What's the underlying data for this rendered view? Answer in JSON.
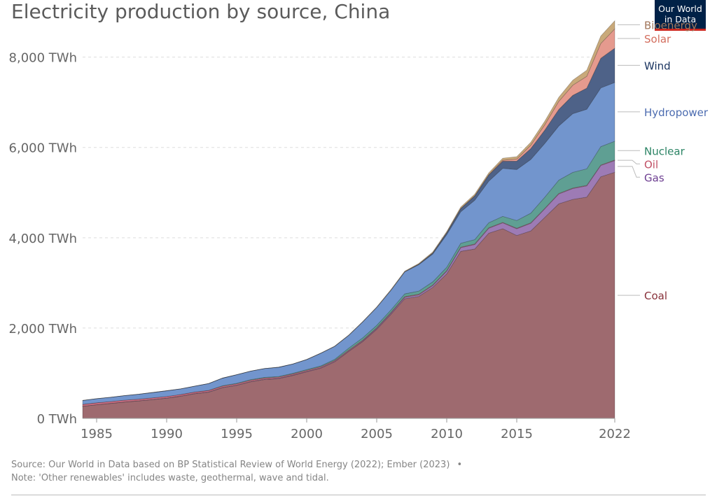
{
  "header": {
    "title": "Electricity production by source, China",
    "logo_line1": "Our World",
    "logo_line2": "in Data"
  },
  "footer": {
    "source": "Source: Our World in Data based on BP Statistical Review of World Energy (2022); Ember (2023)",
    "bullet": "•",
    "note": "Note: 'Other renewables' includes waste, geothermal, wave and tidal."
  },
  "chart_data": {
    "type": "area",
    "stacked": true,
    "title": "Electricity production by source, China",
    "unit": "TWh",
    "x": [
      1984,
      1985,
      1986,
      1987,
      1988,
      1989,
      1990,
      1991,
      1992,
      1993,
      1994,
      1995,
      1996,
      1997,
      1998,
      1999,
      2000,
      2001,
      2002,
      2003,
      2004,
      2005,
      2006,
      2007,
      2008,
      2009,
      2010,
      2011,
      2012,
      2013,
      2014,
      2015,
      2016,
      2017,
      2018,
      2019,
      2020,
      2021,
      2022
    ],
    "x_tick_labels": [
      "1985",
      "1990",
      "1995",
      "2000",
      "2005",
      "2010",
      "2015",
      "2022"
    ],
    "x_tick_values": [
      1985,
      1990,
      1995,
      2000,
      2005,
      2010,
      2015,
      2022
    ],
    "ylim": [
      0,
      8800
    ],
    "y_ticks": [
      0,
      2000,
      4000,
      6000,
      8000
    ],
    "y_tick_labels": [
      "0 TWh",
      "2,000 TWh",
      "4,000 TWh",
      "6,000 TWh",
      "8,000 TWh"
    ],
    "grid": "horizontal dashed",
    "legend": "right, labels at series ends",
    "series": [
      {
        "name": "Coal",
        "color": "#9e6a6f",
        "label_color": "#883039",
        "values": [
          265,
          300,
          330,
          360,
          385,
          415,
          445,
          490,
          545,
          580,
          680,
          730,
          810,
          860,
          880,
          950,
          1030,
          1110,
          1250,
          1480,
          1700,
          1970,
          2300,
          2650,
          2700,
          2900,
          3200,
          3700,
          3750,
          4100,
          4200,
          4050,
          4150,
          4450,
          4750,
          4850,
          4900,
          5350,
          5450
        ]
      },
      {
        "name": "Gas",
        "color": "#9d7bb5",
        "label_color": "#6d3e91",
        "values": [
          4,
          4,
          4,
          5,
          5,
          5,
          6,
          6,
          6,
          7,
          7,
          8,
          8,
          9,
          10,
          10,
          11,
          12,
          12,
          13,
          15,
          20,
          25,
          30,
          35,
          40,
          60,
          80,
          100,
          110,
          130,
          150,
          170,
          190,
          220,
          240,
          250,
          250,
          260
        ]
      },
      {
        "name": "Oil",
        "color": "#cf6f82",
        "label_color": "#c15065",
        "values": [
          40,
          40,
          38,
          38,
          35,
          34,
          33,
          32,
          31,
          30,
          28,
          27,
          26,
          25,
          24,
          23,
          22,
          21,
          20,
          19,
          18,
          17,
          16,
          15,
          14,
          13,
          12,
          11,
          11,
          10,
          10,
          10,
          10,
          10,
          10,
          10,
          10,
          10,
          10
        ]
      },
      {
        "name": "Nuclear",
        "color": "#5f9f93",
        "label_color": "#2c8465",
        "values": [
          0,
          0,
          0,
          0,
          0,
          0,
          0,
          0,
          0,
          2,
          10,
          12,
          14,
          14,
          14,
          15,
          17,
          18,
          25,
          43,
          50,
          53,
          55,
          62,
          68,
          70,
          74,
          86,
          98,
          112,
          133,
          171,
          213,
          248,
          295,
          348,
          366,
          408,
          418
        ]
      },
      {
        "name": "Hydropower",
        "color": "#7295cd",
        "label_color": "#4c6cb0",
        "values": [
          87,
          92,
          95,
          100,
          109,
          118,
          127,
          125,
          130,
          151,
          167,
          190,
          188,
          196,
          204,
          204,
          222,
          280,
          288,
          284,
          354,
          397,
          436,
          486,
          585,
          615,
          722,
          699,
          872,
          920,
          1064,
          1130,
          1190,
          1190,
          1200,
          1300,
          1320,
          1300,
          1300
        ]
      },
      {
        "name": "Wind",
        "color": "#4e6288",
        "label_color": "#18325e",
        "values": [
          0,
          0,
          0,
          0,
          0,
          0,
          0,
          0,
          0,
          0,
          0,
          0,
          0,
          0,
          0,
          0,
          1,
          1,
          1,
          1,
          1,
          2,
          4,
          6,
          13,
          27,
          45,
          70,
          96,
          138,
          156,
          186,
          241,
          295,
          366,
          405,
          467,
          656,
          760
        ]
      },
      {
        "name": "Solar",
        "color": "#e59a8e",
        "label_color": "#d36e5e",
        "values": [
          0,
          0,
          0,
          0,
          0,
          0,
          0,
          0,
          0,
          0,
          0,
          0,
          0,
          0,
          0,
          0,
          0,
          0,
          0,
          0,
          0,
          0,
          0,
          0,
          0,
          0,
          1,
          3,
          4,
          8,
          23,
          45,
          75,
          118,
          178,
          224,
          261,
          327,
          428
        ]
      },
      {
        "name": "Bioenergy",
        "color": "#c9a97a",
        "label_color": "#a2775c",
        "values": [
          0,
          0,
          0,
          0,
          0,
          0,
          0,
          0,
          0,
          0,
          0,
          0,
          0,
          0,
          0,
          0,
          2,
          3,
          4,
          5,
          6,
          8,
          10,
          12,
          15,
          20,
          24,
          32,
          34,
          38,
          46,
          53,
          65,
          80,
          91,
          112,
          136,
          165,
          180
        ]
      }
    ]
  }
}
